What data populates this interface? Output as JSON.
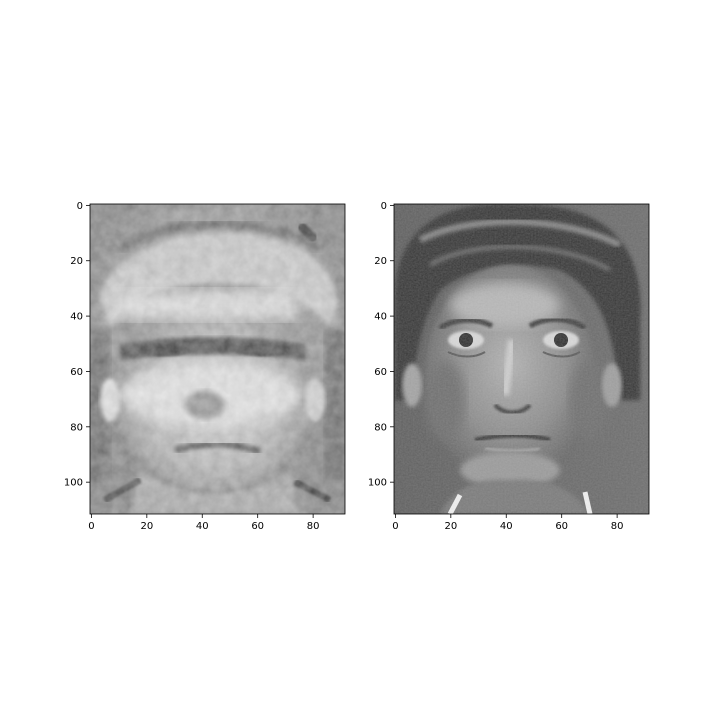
{
  "figure": {
    "background": "#ffffff",
    "panels": [
      {
        "id": "left",
        "image_description_name": "reconstructed-face-image",
        "x_ticks": [
          "0",
          "20",
          "40",
          "60",
          "80"
        ],
        "y_ticks": [
          "0",
          "20",
          "40",
          "60",
          "80",
          "100"
        ],
        "x_tick_values": [
          0,
          20,
          40,
          60,
          80
        ],
        "y_tick_values": [
          0,
          20,
          40,
          60,
          80,
          100
        ],
        "xlim": [
          -0.5,
          91.5
        ],
        "ylim": [
          111.5,
          -0.5
        ]
      },
      {
        "id": "right",
        "image_description_name": "original-face-image",
        "x_ticks": [
          "0",
          "20",
          "40",
          "60",
          "80"
        ],
        "y_ticks": [
          "0",
          "20",
          "40",
          "60",
          "80",
          "100"
        ],
        "x_tick_values": [
          0,
          20,
          40,
          60,
          80
        ],
        "y_tick_values": [
          0,
          20,
          40,
          60,
          80,
          100
        ],
        "xlim": [
          -0.5,
          91.5
        ],
        "ylim": [
          111.5,
          -0.5
        ]
      }
    ]
  }
}
